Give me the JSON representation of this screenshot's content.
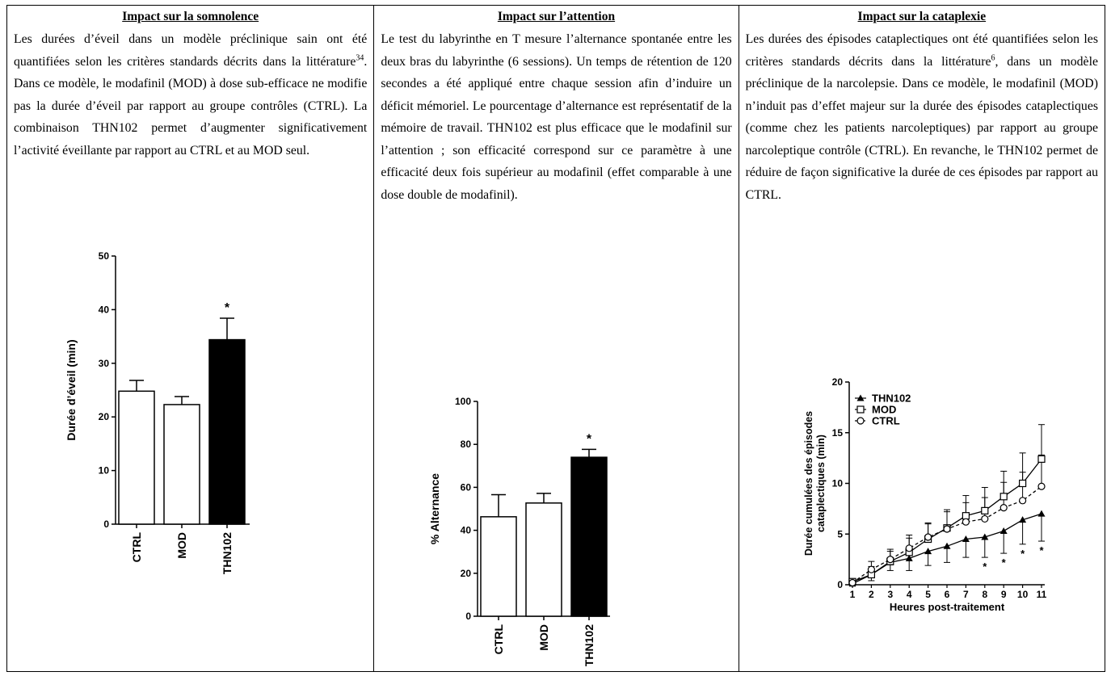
{
  "columns": [
    {
      "title": "Impact sur la somnolence",
      "text_before": "Les durées d’éveil dans un modèle préclinique sain ont été quantifiées selon les critères standards décrits dans la littérature",
      "ref": "34",
      "text_after": ". Dans ce modèle, le modafinil (MOD) à dose sub-efficace ne modifie pas la durée d’éveil par rapport au groupe contrôles (CTRL). La combinaison THN102 permet d’augmenter significativement l’activité éveillante par rapport au CTRL et au MOD seul."
    },
    {
      "title": "Impact sur l’attention",
      "text_before": "Le test du labyrinthe en T mesure l’alternance spontanée entre les deux bras du labyrinthe (6 sessions). Un temps de rétention de 120 secondes a été appliqué entre chaque session afin d’induire un déficit mémoriel. Le pourcentage d’alternance est représentatif de la mémoire de travail. THN102 est plus efficace que le modafinil sur l’attention ; son efficacité correspond sur ce paramètre à une efficacité deux fois supérieur au modafinil (effet comparable à une dose double de modafinil).",
      "ref": "",
      "text_after": ""
    },
    {
      "title": "Impact sur la cataplexie",
      "text_before": "Les durées des épisodes cataplectiques ont été quantifiées selon les critères standards décrits dans la littérature",
      "ref": "6",
      "text_after": ", dans un modèle préclinique de la narcolepsie. Dans ce modèle, le modafinil (MOD) n’induit pas d’effet majeur sur la durée des épisodes cataplectiques (comme chez les patients narcoleptiques) par rapport au groupe narcoleptique contrôle (CTRL). En revanche, le THN102 permet de réduire de façon significative la durée de ces épisodes par rapport au CTRL."
    }
  ],
  "chart_data": [
    {
      "type": "bar",
      "categories": [
        "CTRL",
        "MOD",
        "THN102"
      ],
      "values": [
        24.8,
        22.3,
        34.4
      ],
      "errors": [
        2.0,
        1.5,
        4.0
      ],
      "fills": [
        "#ffffff",
        "#ffffff",
        "#000000"
      ],
      "significance": [
        "",
        "",
        "*"
      ],
      "ylabel": "Durée d’éveil (min)",
      "ylim": [
        0,
        50
      ],
      "yticks": [
        0,
        10,
        20,
        30,
        40,
        50
      ],
      "grid": false
    },
    {
      "type": "bar",
      "categories": [
        "CTRL",
        "MOD",
        "THN102"
      ],
      "values": [
        46.3,
        52.7,
        74.0
      ],
      "errors": [
        10.3,
        4.5,
        3.7
      ],
      "fills": [
        "#ffffff",
        "#ffffff",
        "#000000"
      ],
      "significance": [
        "",
        "",
        "*"
      ],
      "ylabel": "% Alternance",
      "ylim": [
        0,
        100
      ],
      "yticks": [
        0,
        20,
        40,
        60,
        80,
        100
      ],
      "grid": false
    },
    {
      "type": "line",
      "x": [
        1,
        2,
        3,
        4,
        5,
        6,
        7,
        8,
        9,
        10,
        11
      ],
      "series": [
        {
          "name": "THN102",
          "marker": "triangle-filled",
          "dash": false,
          "values": [
            0.1,
            1.0,
            2.2,
            2.6,
            3.3,
            3.8,
            4.5,
            4.7,
            5.3,
            6.4,
            7.0
          ],
          "errors": [
            0.2,
            0.6,
            0.8,
            1.2,
            1.4,
            1.6,
            1.8,
            2.0,
            2.2,
            2.4,
            2.7
          ],
          "significance": [
            "",
            "",
            "",
            "",
            "",
            "",
            "",
            "*",
            "*",
            "*",
            "*"
          ]
        },
        {
          "name": "MOD",
          "marker": "square-open",
          "dash": false,
          "values": [
            0.3,
            1.0,
            2.3,
            3.2,
            4.5,
            5.6,
            6.8,
            7.3,
            8.7,
            10.0,
            12.4
          ],
          "errors": [
            0.3,
            0.8,
            1.0,
            1.4,
            1.5,
            1.8,
            2.0,
            2.3,
            2.5,
            3.0,
            3.4
          ]
        },
        {
          "name": "CTRL",
          "marker": "circle-open",
          "dash": true,
          "values": [
            0.2,
            1.5,
            2.5,
            3.6,
            4.7,
            5.5,
            6.2,
            6.5,
            7.6,
            8.3,
            9.7
          ],
          "errors": [
            0.3,
            0.8,
            1.0,
            1.3,
            1.4,
            1.7,
            1.9,
            2.1,
            2.5,
            2.8,
            3.1
          ]
        }
      ],
      "xlabel": "Heures post-traitement",
      "ylabel_line1": "Durée cumulées des épisodes",
      "ylabel_line2": "cataplectiques (min)",
      "ylim": [
        0,
        20
      ],
      "yticks": [
        0,
        5,
        10,
        15,
        20
      ],
      "legend": "top-left",
      "grid": false
    }
  ]
}
